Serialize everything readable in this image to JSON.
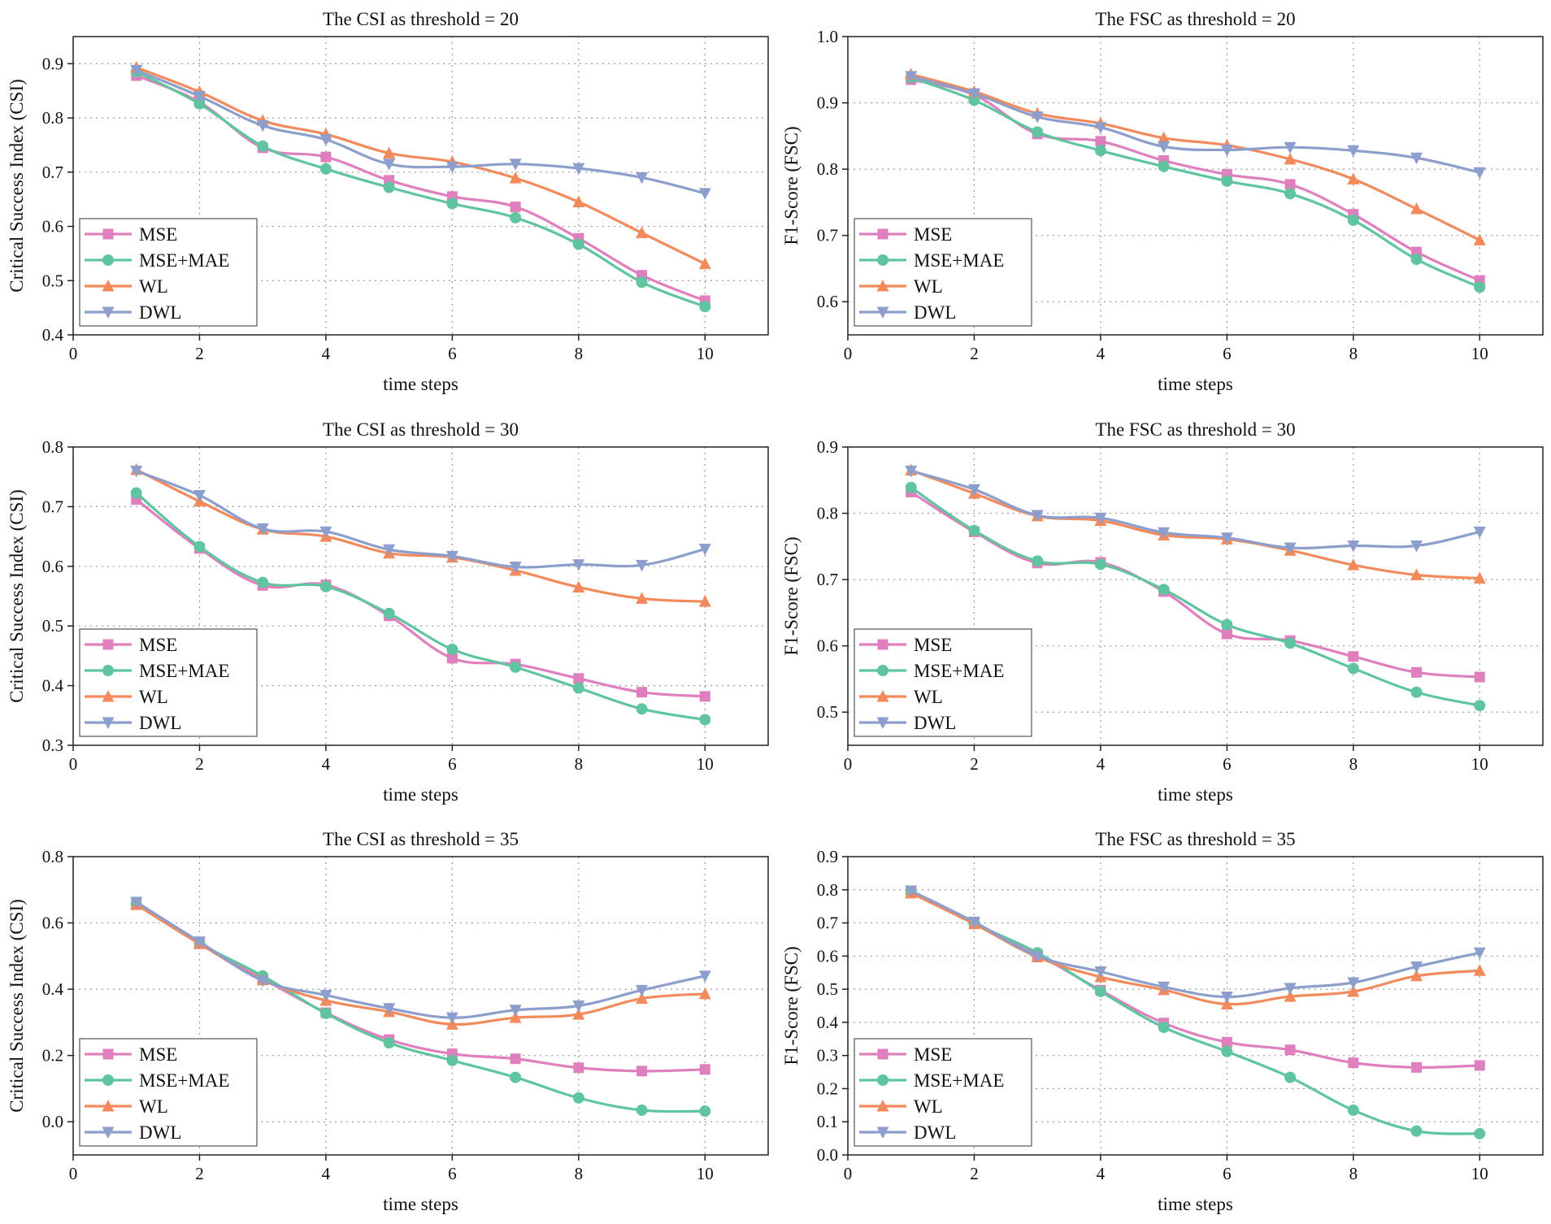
{
  "colors": {
    "MSE": "#e07fbe",
    "MSE+MAE": "#5fc4a0",
    "WL": "#f28a5c",
    "DWL": "#8c9ecb"
  },
  "markers": {
    "MSE": "square",
    "MSE+MAE": "circle",
    "WL": "triangle-up",
    "DWL": "triangle-down"
  },
  "chart_data": [
    {
      "type": "line",
      "title": "The CSI as threshold = 20",
      "xlabel": "time steps",
      "ylabel": "Critical Success Index (CSI)",
      "xlim": [
        0,
        11
      ],
      "ylim": [
        0.4,
        0.95
      ],
      "xticks": [
        "0",
        "2",
        "4",
        "6",
        "8",
        "10"
      ],
      "yticks": [
        "0.4",
        "0.5",
        "0.6",
        "0.7",
        "0.8",
        "0.9"
      ],
      "grid": true,
      "legend": "bottom-left",
      "x": [
        1,
        2,
        3,
        4,
        5,
        6,
        7,
        8,
        9,
        10
      ],
      "series": [
        {
          "name": "MSE",
          "values": [
            0.878,
            0.829,
            0.745,
            0.728,
            0.685,
            0.655,
            0.636,
            0.578,
            0.51,
            0.463
          ]
        },
        {
          "name": "MSE+MAE",
          "values": [
            0.885,
            0.826,
            0.748,
            0.706,
            0.672,
            0.642,
            0.616,
            0.567,
            0.497,
            0.452
          ]
        },
        {
          "name": "WL",
          "values": [
            0.893,
            0.848,
            0.795,
            0.77,
            0.735,
            0.719,
            0.689,
            0.645,
            0.588,
            0.531
          ]
        },
        {
          "name": "DWL",
          "values": [
            0.888,
            0.84,
            0.786,
            0.76,
            0.715,
            0.71,
            0.715,
            0.707,
            0.69,
            0.661
          ]
        }
      ]
    },
    {
      "type": "line",
      "title": "The FSC as threshold = 20",
      "xlabel": "time steps",
      "ylabel": "F1-Score (FSC)",
      "xlim": [
        0,
        11
      ],
      "ylim": [
        0.55,
        1.0
      ],
      "xticks": [
        "0",
        "2",
        "4",
        "6",
        "8",
        "10"
      ],
      "yticks": [
        "0.6",
        "0.7",
        "0.8",
        "0.9",
        "1.0"
      ],
      "grid": true,
      "legend": "bottom-left",
      "x": [
        1,
        2,
        3,
        4,
        5,
        6,
        7,
        8,
        9,
        10
      ],
      "series": [
        {
          "name": "MSE",
          "values": [
            0.935,
            0.912,
            0.853,
            0.842,
            0.813,
            0.792,
            0.777,
            0.732,
            0.675,
            0.632
          ]
        },
        {
          "name": "MSE+MAE",
          "values": [
            0.938,
            0.904,
            0.856,
            0.828,
            0.804,
            0.782,
            0.763,
            0.723,
            0.664,
            0.622
          ]
        },
        {
          "name": "WL",
          "values": [
            0.943,
            0.917,
            0.884,
            0.869,
            0.847,
            0.836,
            0.815,
            0.785,
            0.74,
            0.693
          ]
        },
        {
          "name": "DWL",
          "values": [
            0.94,
            0.914,
            0.879,
            0.863,
            0.834,
            0.829,
            0.833,
            0.828,
            0.817,
            0.795
          ]
        }
      ]
    },
    {
      "type": "line",
      "title": "The CSI as threshold = 30",
      "xlabel": "time steps",
      "ylabel": "Critical Success Index (CSI)",
      "xlim": [
        0,
        11
      ],
      "ylim": [
        0.3,
        0.8
      ],
      "xticks": [
        "0",
        "2",
        "4",
        "6",
        "8",
        "10"
      ],
      "yticks": [
        "0.3",
        "0.4",
        "0.5",
        "0.6",
        "0.7",
        "0.8"
      ],
      "grid": true,
      "legend": "bottom-left",
      "x": [
        1,
        2,
        3,
        4,
        5,
        6,
        7,
        8,
        9,
        10
      ],
      "series": [
        {
          "name": "MSE",
          "values": [
            0.712,
            0.63,
            0.568,
            0.569,
            0.517,
            0.446,
            0.436,
            0.412,
            0.389,
            0.382
          ]
        },
        {
          "name": "MSE+MAE",
          "values": [
            0.723,
            0.633,
            0.573,
            0.566,
            0.521,
            0.461,
            0.431,
            0.396,
            0.361,
            0.343
          ]
        },
        {
          "name": "WL",
          "values": [
            0.762,
            0.709,
            0.662,
            0.65,
            0.622,
            0.615,
            0.593,
            0.565,
            0.546,
            0.541
          ]
        },
        {
          "name": "DWL",
          "values": [
            0.76,
            0.719,
            0.663,
            0.658,
            0.628,
            0.617,
            0.599,
            0.603,
            0.602,
            0.629
          ]
        }
      ]
    },
    {
      "type": "line",
      "title": "The FSC as threshold = 30",
      "xlabel": "time steps",
      "ylabel": "F1-Score (FSC)",
      "xlim": [
        0,
        11
      ],
      "ylim": [
        0.45,
        0.9
      ],
      "xticks": [
        "0",
        "2",
        "4",
        "6",
        "8",
        "10"
      ],
      "yticks": [
        "0.5",
        "0.6",
        "0.7",
        "0.8",
        "0.9"
      ],
      "grid": true,
      "legend": "bottom-left",
      "x": [
        1,
        2,
        3,
        4,
        5,
        6,
        7,
        8,
        9,
        10
      ],
      "series": [
        {
          "name": "MSE",
          "values": [
            0.832,
            0.772,
            0.725,
            0.726,
            0.682,
            0.618,
            0.608,
            0.584,
            0.56,
            0.553
          ]
        },
        {
          "name": "MSE+MAE",
          "values": [
            0.839,
            0.774,
            0.728,
            0.723,
            0.685,
            0.632,
            0.604,
            0.566,
            0.53,
            0.51
          ]
        },
        {
          "name": "WL",
          "values": [
            0.865,
            0.83,
            0.796,
            0.789,
            0.767,
            0.761,
            0.744,
            0.722,
            0.707,
            0.702
          ]
        },
        {
          "name": "DWL",
          "values": [
            0.864,
            0.836,
            0.797,
            0.793,
            0.771,
            0.763,
            0.748,
            0.751,
            0.751,
            0.772
          ]
        }
      ]
    },
    {
      "type": "line",
      "title": "The CSI as threshold = 35",
      "xlabel": "time steps",
      "ylabel": "Critical Success Index (CSI)",
      "xlim": [
        0,
        11
      ],
      "ylim": [
        -0.1,
        0.8
      ],
      "xticks": [
        "0",
        "2",
        "4",
        "6",
        "8",
        "10"
      ],
      "yticks": [
        "0.0",
        "0.2",
        "0.4",
        "0.6",
        "0.8"
      ],
      "grid": true,
      "legend": "bottom-left",
      "x": [
        1,
        2,
        3,
        4,
        5,
        6,
        7,
        8,
        9,
        10
      ],
      "series": [
        {
          "name": "MSE",
          "values": [
            0.658,
            0.54,
            0.432,
            0.329,
            0.248,
            0.205,
            0.19,
            0.163,
            0.153,
            0.158
          ]
        },
        {
          "name": "MSE+MAE",
          "values": [
            0.657,
            0.538,
            0.44,
            0.327,
            0.238,
            0.185,
            0.134,
            0.072,
            0.035,
            0.032
          ]
        },
        {
          "name": "WL",
          "values": [
            0.655,
            0.537,
            0.428,
            0.366,
            0.332,
            0.294,
            0.314,
            0.324,
            0.372,
            0.386
          ]
        },
        {
          "name": "DWL",
          "values": [
            0.663,
            0.543,
            0.426,
            0.382,
            0.342,
            0.314,
            0.337,
            0.35,
            0.397,
            0.44
          ]
        }
      ]
    },
    {
      "type": "line",
      "title": "The FSC as threshold = 35",
      "xlabel": "time steps",
      "ylabel": "F1-Score (FSC)",
      "xlim": [
        0,
        11
      ],
      "ylim": [
        0.0,
        0.9
      ],
      "xticks": [
        "0",
        "2",
        "4",
        "6",
        "8",
        "10"
      ],
      "yticks": [
        "0.0",
        "0.1",
        "0.2",
        "0.3",
        "0.4",
        "0.5",
        "0.6",
        "0.7",
        "0.8",
        "0.9"
      ],
      "grid": true,
      "legend": "bottom-left",
      "x": [
        1,
        2,
        3,
        4,
        5,
        6,
        7,
        8,
        9,
        10
      ],
      "series": [
        {
          "name": "MSE",
          "values": [
            0.793,
            0.7,
            0.605,
            0.497,
            0.398,
            0.34,
            0.317,
            0.278,
            0.264,
            0.27
          ]
        },
        {
          "name": "MSE+MAE",
          "values": [
            0.792,
            0.698,
            0.61,
            0.493,
            0.385,
            0.312,
            0.234,
            0.135,
            0.072,
            0.064
          ]
        },
        {
          "name": "WL",
          "values": [
            0.79,
            0.697,
            0.597,
            0.537,
            0.498,
            0.455,
            0.478,
            0.493,
            0.54,
            0.556
          ]
        },
        {
          "name": "DWL",
          "values": [
            0.797,
            0.703,
            0.6,
            0.553,
            0.507,
            0.477,
            0.503,
            0.52,
            0.568,
            0.61
          ]
        }
      ]
    }
  ]
}
